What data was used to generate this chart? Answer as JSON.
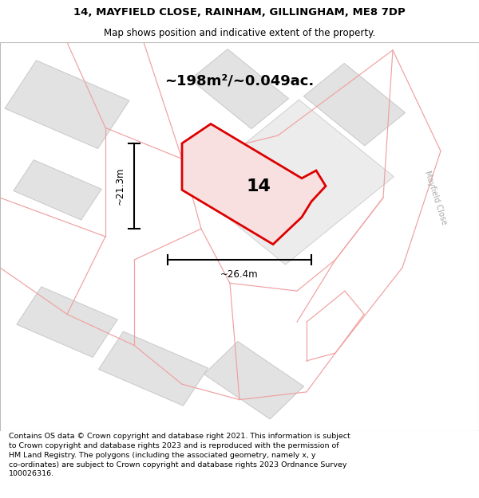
{
  "title": "14, MAYFIELD CLOSE, RAINHAM, GILLINGHAM, ME8 7DP",
  "subtitle": "Map shows position and indicative extent of the property.",
  "footer": "Contains OS data © Crown copyright and database right 2021. This information is subject\nto Crown copyright and database rights 2023 and is reproduced with the permission of\nHM Land Registry. The polygons (including the associated geometry, namely x, y\nco-ordinates) are subject to Crown copyright and database rights 2023 Ordnance Survey\n100026316.",
  "area_label": "~198m²/~0.049ac.",
  "width_label": "~26.4m",
  "height_label": "~21.3m",
  "property_number": "14",
  "bg_color": "#ffffff",
  "map_bg": "#ffffff",
  "building_fill": "#e2e2e2",
  "building_edge": "#c8c8c8",
  "pink_line": "#f0a0a0",
  "red_outline": "#dd0000",
  "red_fill": "#f8e0e0",
  "street_label": "Mayfield Close",
  "title_fontsize": 9.5,
  "subtitle_fontsize": 8.5,
  "footer_fontsize": 6.8,
  "area_fontsize": 13,
  "number_fontsize": 16,
  "dim_fontsize": 8.5
}
